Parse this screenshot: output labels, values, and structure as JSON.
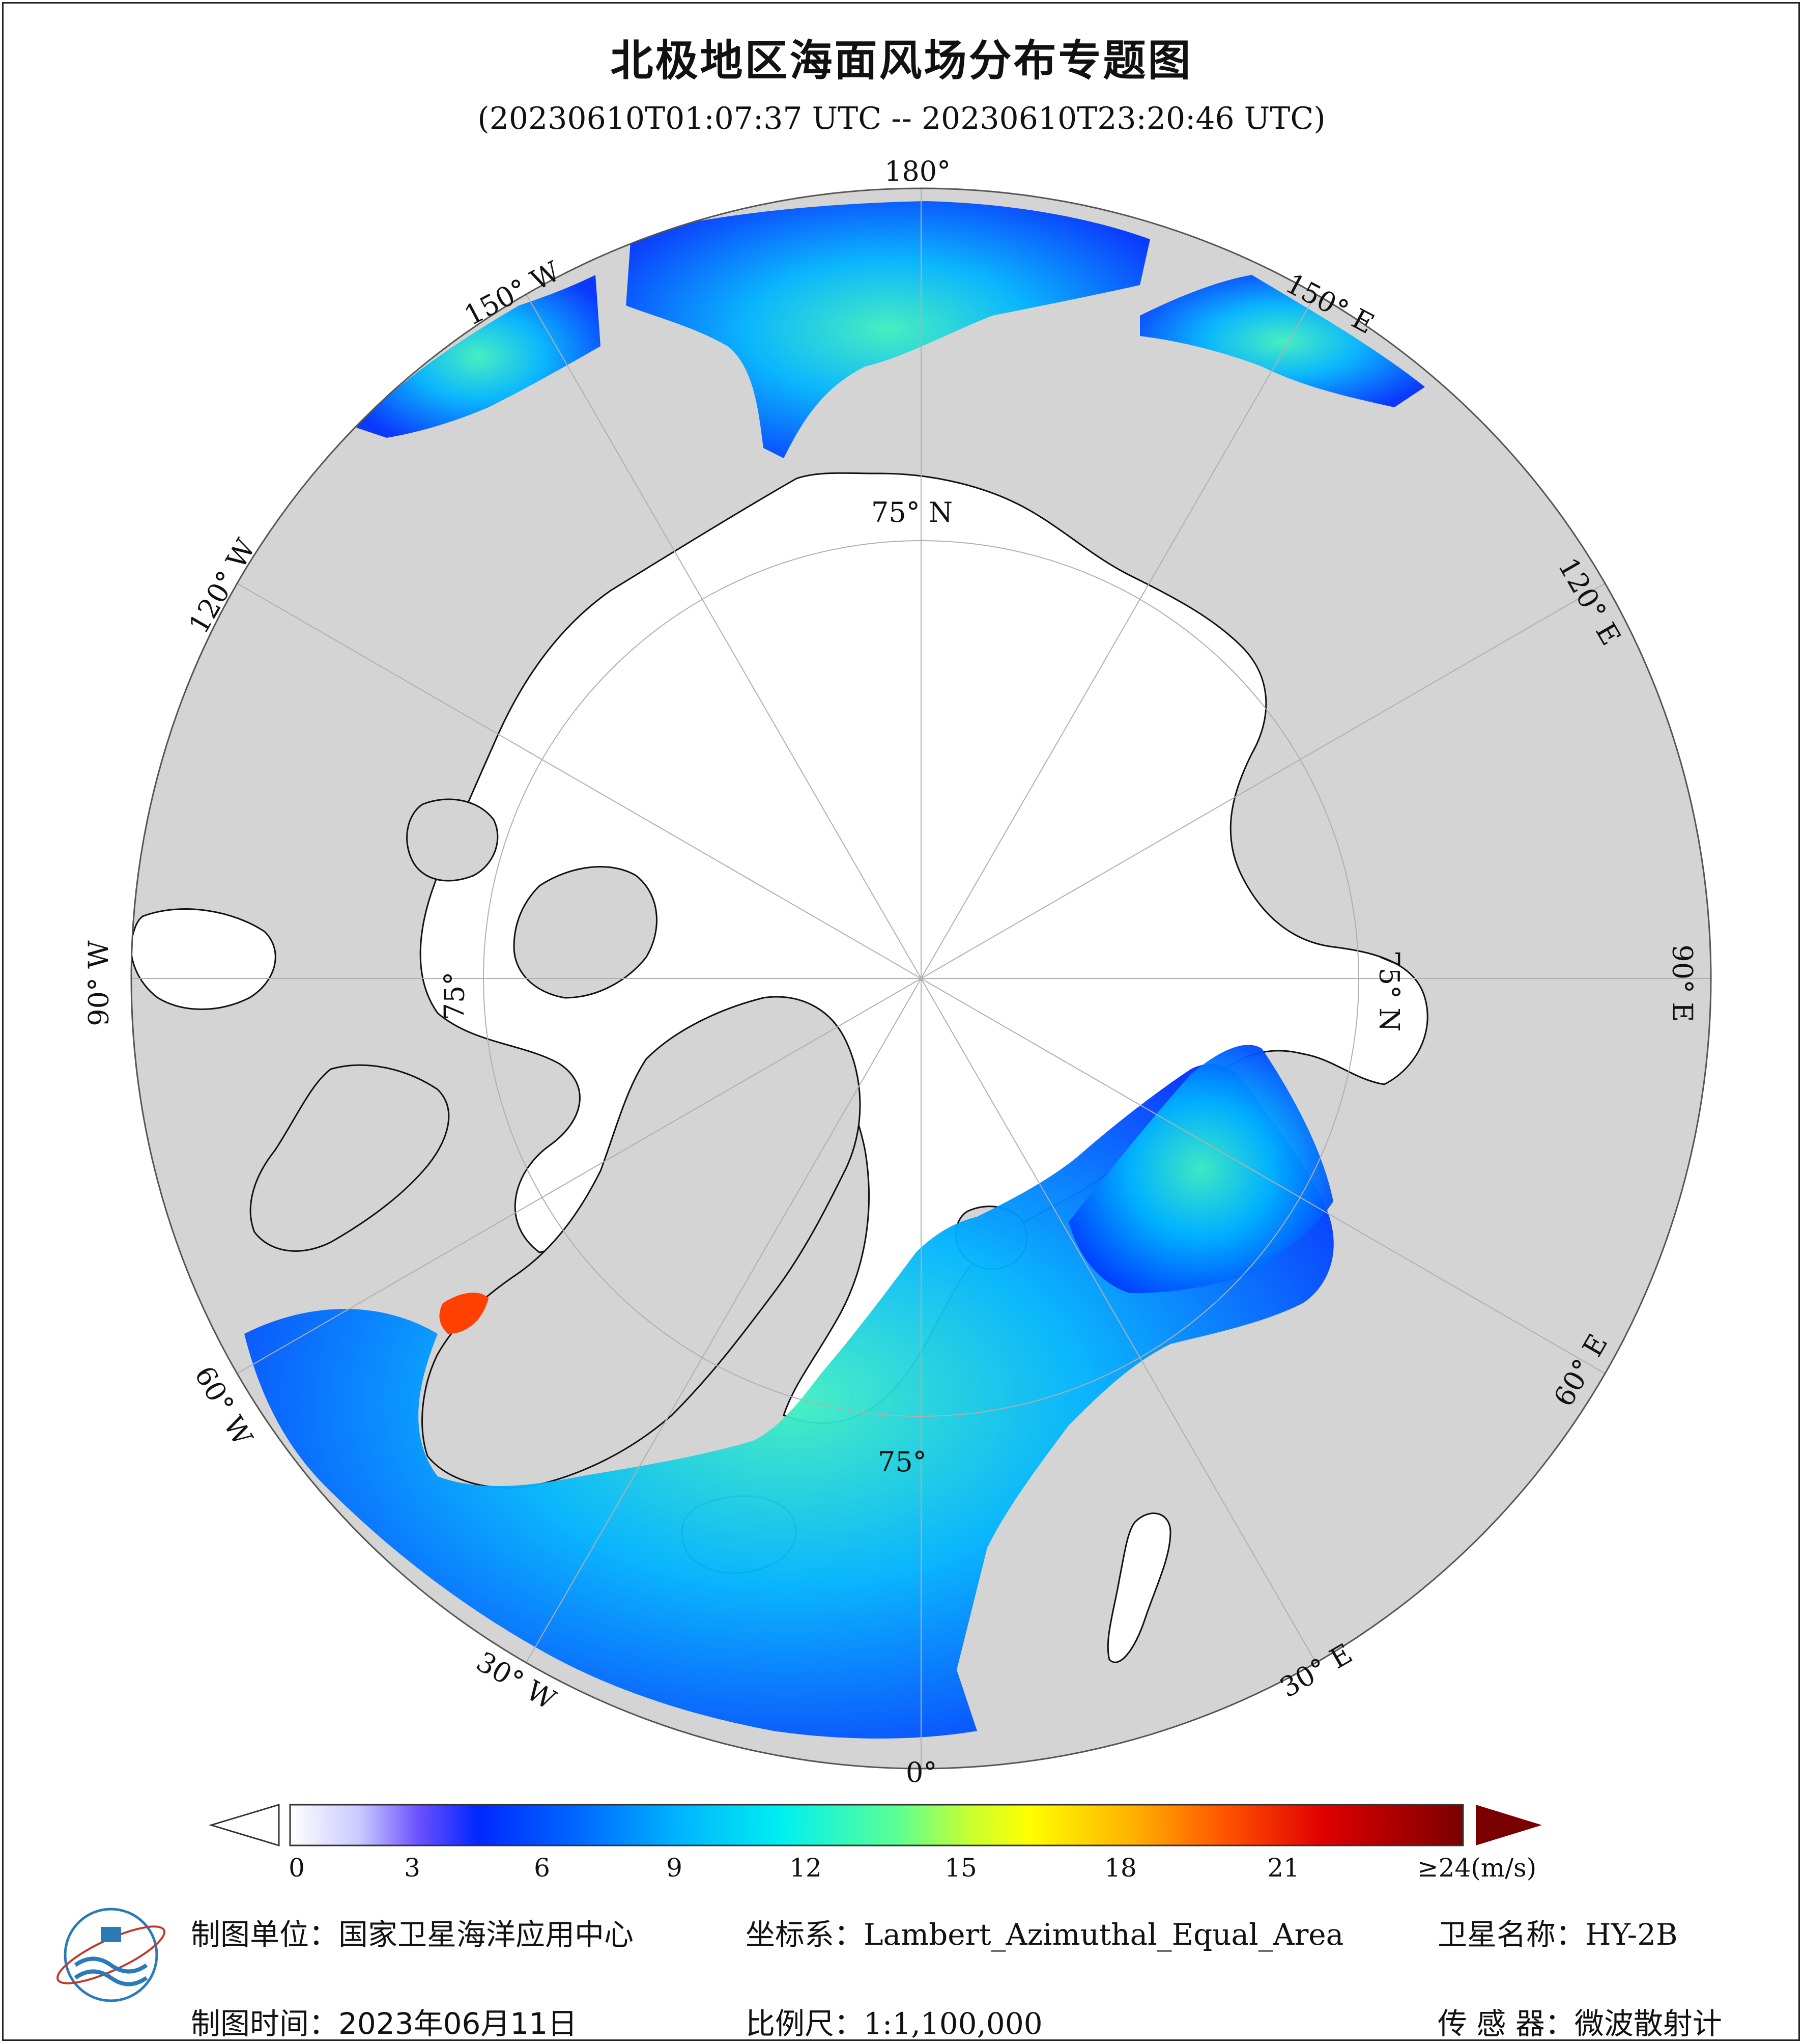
{
  "title": "北极地区海面风场分布专题图",
  "subtitle": "(20230610T01:07:37 UTC -- 20230610T23:20:46 UTC)",
  "graticule": {
    "lon_180": "180°",
    "lon_150w": "150° W",
    "lon_150e": "150° E",
    "lon_120w": "120° W",
    "lon_120e": "120° E",
    "lon_90w": "90° W",
    "lon_90e": "90° E",
    "lon_60w": "60° W",
    "lon_60e": "60° E",
    "lon_30w": "30° W",
    "lon_30e": "30° E",
    "lon_0": "0°",
    "lat_75n_top": "75° N",
    "lat_75n_right": "75° N",
    "lat_75_left": "75°",
    "lat_75_bottom": "75°"
  },
  "colorbar": {
    "ticks": [
      "0",
      "3",
      "6",
      "9",
      "12",
      "15",
      "18",
      "21",
      "≥24(m/s)"
    ],
    "tick_values": [
      0,
      3,
      6,
      9,
      12,
      15,
      18,
      21,
      24
    ],
    "range": [
      0,
      24
    ],
    "unit": "m/s",
    "stops": [
      "#ffffff",
      "#c8c8ff",
      "#6a50ff",
      "#0028ff",
      "#006cff",
      "#00b4ff",
      "#00f0f0",
      "#60ff90",
      "#c8ff30",
      "#ffff00",
      "#ffb000",
      "#ff5000",
      "#e00000",
      "#7a0000"
    ],
    "under_color": "#ffffff",
    "over_color": "#7a0000"
  },
  "colors": {
    "land": "#d4d4d4",
    "ice": "#ffffff",
    "coast": "#111111",
    "graticule": "#b0b0b0"
  },
  "footer": {
    "unit_label": "制图单位：",
    "unit_value": "国家卫星海洋应用中心",
    "crs_label": "坐标系：",
    "crs_value": "Lambert_Azimuthal_Equal_Area",
    "satellite_label": "卫星名称：",
    "satellite_value": "HY-2B",
    "date_label": "制图时间：",
    "date_value": "2023年06月11日",
    "scale_label": "比例尺：",
    "scale_value": "1:1,100,000",
    "sensor_label": "传 感 器：",
    "sensor_value": "微波散射计"
  }
}
